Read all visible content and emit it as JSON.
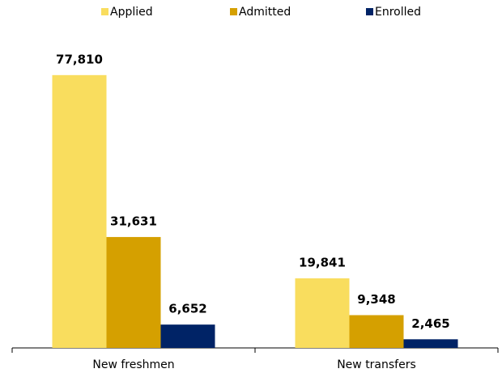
{
  "chart_data": {
    "type": "bar",
    "categories": [
      "New freshmen",
      "New transfers"
    ],
    "series": [
      {
        "name": "Applied",
        "color": "#f9dd5e",
        "values": [
          77810,
          19841
        ],
        "value_labels": [
          "77,810",
          "19,841"
        ]
      },
      {
        "name": "Admitted",
        "color": "#d5a000",
        "values": [
          31631,
          9348
        ],
        "value_labels": [
          "31,631",
          "9,348"
        ]
      },
      {
        "name": "Enrolled",
        "color": "#002366",
        "values": [
          6652,
          2465
        ],
        "value_labels": [
          "6,652",
          "2,465"
        ]
      }
    ],
    "ylim": [
      0,
      90000
    ],
    "legend": "top"
  }
}
